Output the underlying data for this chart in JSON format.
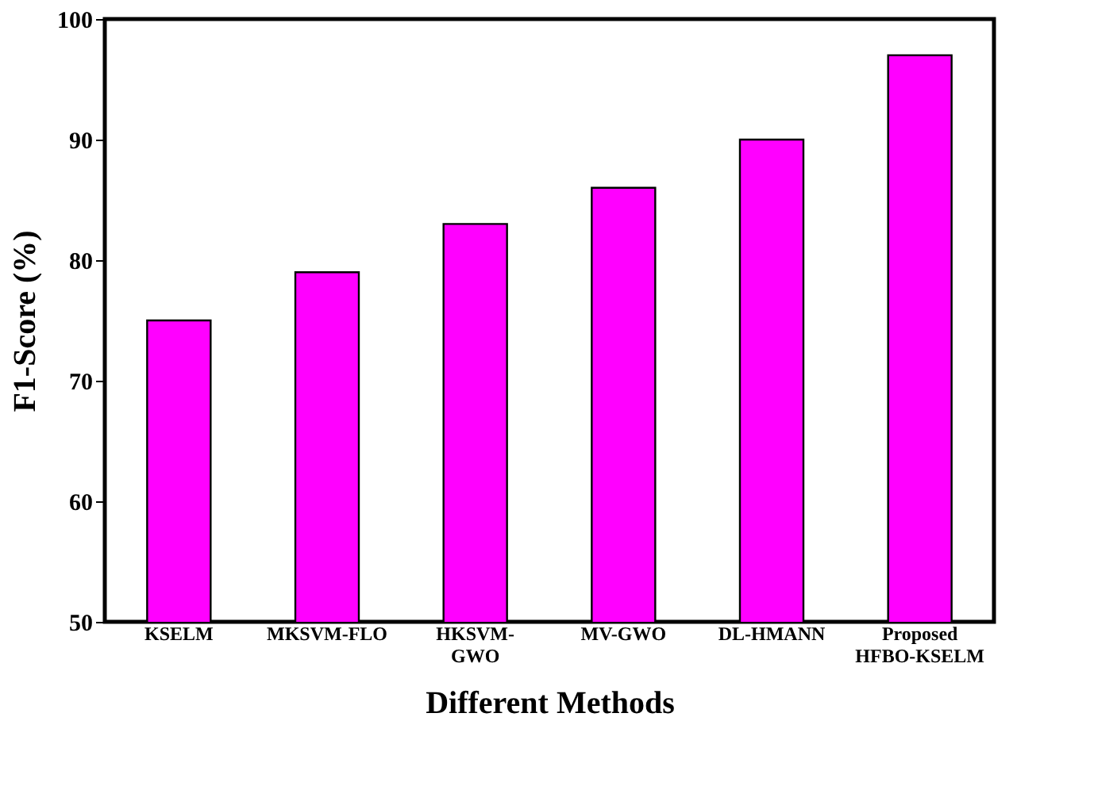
{
  "chart_data": {
    "type": "bar",
    "xlabel": "Different Methods",
    "ylabel": "F1-Score (%)",
    "categories": [
      "KSELM",
      "MKSVM-FLO",
      "HKSVM-\nGWO",
      "MV-GWO",
      "DL-HMANN",
      "Proposed\nHFBO-KSELM"
    ],
    "values": [
      75,
      79,
      83,
      86,
      90,
      97
    ],
    "color": "#ff00ff",
    "ylim": [
      50,
      100
    ],
    "yticks": [
      50,
      60,
      70,
      80,
      90,
      100
    ],
    "grid": false
  }
}
